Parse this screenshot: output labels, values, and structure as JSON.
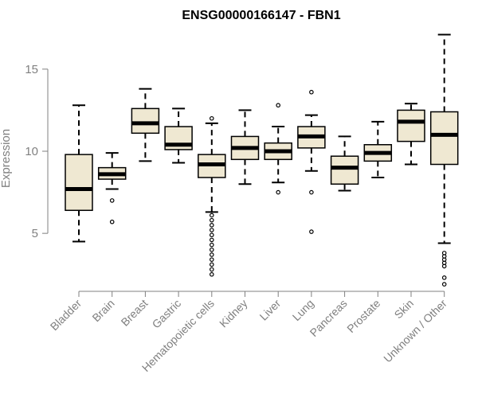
{
  "chart_data": {
    "type": "boxplot",
    "title": "ENSG00000166147 - FBN1",
    "xlabel": "",
    "ylabel": "Expression",
    "ylim": [
      1.5,
      17.3
    ],
    "yticks": [
      5,
      10,
      15
    ],
    "grid": false,
    "legend": "none",
    "colors": {
      "box_fill": "#efe8d2",
      "stroke": "#000000",
      "axis": "#808080"
    },
    "categories": [
      "Bladder",
      "Brain",
      "Breast",
      "Gastric",
      "Hematopoietic cells",
      "Kidney",
      "Liver",
      "Lung",
      "Pancreas",
      "Prostate",
      "Skin",
      "Unknown / Other"
    ],
    "boxes": [
      {
        "q1": 6.4,
        "median": 7.7,
        "q3": 9.8,
        "whisker_low": 4.5,
        "whisker_high": 12.8,
        "outliers": []
      },
      {
        "q1": 8.3,
        "median": 8.6,
        "q3": 9.0,
        "whisker_low": 7.7,
        "whisker_high": 9.9,
        "outliers": [
          7.0,
          5.7
        ]
      },
      {
        "q1": 11.1,
        "median": 11.7,
        "q3": 12.6,
        "whisker_low": 9.4,
        "whisker_high": 13.8,
        "outliers": []
      },
      {
        "q1": 10.1,
        "median": 10.4,
        "q3": 11.5,
        "whisker_low": 9.3,
        "whisker_high": 12.6,
        "outliers": []
      },
      {
        "q1": 8.4,
        "median": 9.2,
        "q3": 9.8,
        "whisker_low": 6.3,
        "whisker_high": 11.7,
        "outliers": [
          12.0,
          6.1,
          5.8,
          5.5,
          5.2,
          4.9,
          4.6,
          4.3,
          4.0,
          3.7,
          3.4,
          3.1,
          2.8,
          2.5
        ]
      },
      {
        "q1": 9.5,
        "median": 10.2,
        "q3": 10.9,
        "whisker_low": 8.0,
        "whisker_high": 12.5,
        "outliers": []
      },
      {
        "q1": 9.5,
        "median": 10.0,
        "q3": 10.5,
        "whisker_low": 8.1,
        "whisker_high": 11.5,
        "outliers": [
          12.8,
          7.5
        ]
      },
      {
        "q1": 10.2,
        "median": 10.9,
        "q3": 11.5,
        "whisker_low": 8.8,
        "whisker_high": 12.2,
        "outliers": [
          13.6,
          7.5,
          5.1
        ]
      },
      {
        "q1": 8.0,
        "median": 9.0,
        "q3": 9.7,
        "whisker_low": 7.6,
        "whisker_high": 10.9,
        "outliers": []
      },
      {
        "q1": 9.4,
        "median": 9.9,
        "q3": 10.4,
        "whisker_low": 8.4,
        "whisker_high": 11.8,
        "outliers": []
      },
      {
        "q1": 10.6,
        "median": 11.8,
        "q3": 12.5,
        "whisker_low": 9.2,
        "whisker_high": 12.9,
        "outliers": []
      },
      {
        "q1": 9.2,
        "median": 11.0,
        "q3": 12.4,
        "whisker_low": 4.4,
        "whisker_high": 17.1,
        "outliers": [
          3.8,
          3.6,
          3.4,
          3.2,
          3.0,
          2.3,
          1.9
        ]
      }
    ]
  }
}
